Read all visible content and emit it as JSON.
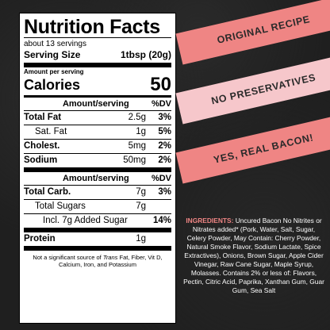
{
  "label": {
    "title": "Nutrition Facts",
    "servings": "about 13 servings",
    "serving_size_label": "Serving Size",
    "serving_size_value": "1tbsp (20g)",
    "amount_per_serving": "Amount per serving",
    "calories_label": "Calories",
    "calories_value": "50",
    "header1": {
      "amount": "Amount/serving",
      "dv": "%DV"
    },
    "rows1": [
      {
        "name": "Total Fat",
        "amount": "2.5g",
        "dv": "3%"
      },
      {
        "name": "Sat. Fat",
        "amount": "1g",
        "dv": "5%"
      },
      {
        "name": "Cholest.",
        "amount": "5mg",
        "dv": "2%"
      },
      {
        "name": "Sodium",
        "amount": "50mg",
        "dv": "2%"
      }
    ],
    "header2": {
      "amount": "Amount/serving",
      "dv": "%DV"
    },
    "rows2": [
      {
        "name": "Total Carb.",
        "amount": "7g",
        "dv": "3%"
      },
      {
        "name": "Total Sugars",
        "amount": "7g",
        "dv": ""
      },
      {
        "name": "Incl. 7g Added Sugar",
        "amount": "",
        "dv": "14%"
      },
      {
        "name": "Protein",
        "amount": "1g",
        "dv": ""
      }
    ],
    "footnote_pre": "Not a significant source of",
    "footnote_italic": "Trans",
    "footnote_post": "Fat, Fiber, Vit D, Calcium, Iron, and Potassium"
  },
  "banners": [
    "ORIGINAL RECIPE",
    "NO PRESERVATIVES",
    "YES, REAL BACON!"
  ],
  "ingredients": {
    "label": "INGREDIENTS:",
    "text": "Uncured Bacon No Nitrites or Nitrates added* (Pork, Water, Salt, Sugar, Celery Powder, May Contain: Cherry Powder, Natural Smoke Flavor, Sodium Lactate, Spice Extractives), Onions, Brown Sugar, Apple Cider Vinegar, Raw Cane Sugar, Maple Syrup, Molasses. Contains 2% or less of: Flavors, Pectin, Citric Acid, Paprika, Xanthan Gum, Guar Gum, Sea Salt"
  },
  "colors": {
    "accent_coral": "#ef8584",
    "accent_pink": "#f6c7cb",
    "background": "#1f1f1f"
  }
}
